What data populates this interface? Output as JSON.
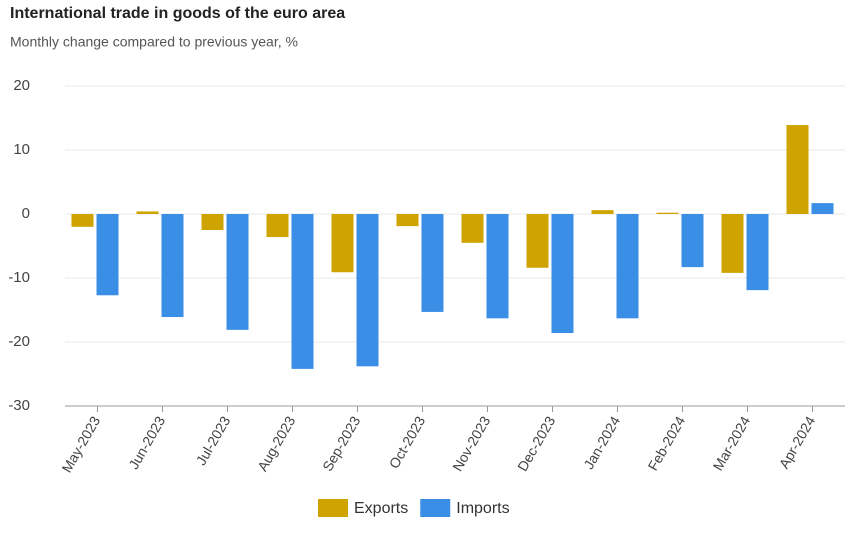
{
  "chart_data": {
    "type": "bar",
    "title": "International trade in goods of the euro area",
    "subtitle": "Monthly change compared to previous year, %",
    "categories": [
      "May-2023",
      "Jun-2023",
      "Jul-2023",
      "Aug-2023",
      "Sep-2023",
      "Oct-2023",
      "Nov-2023",
      "Dec-2023",
      "Jan-2024",
      "Feb-2024",
      "Mar-2024",
      "Apr-2024"
    ],
    "series": [
      {
        "name": "Exports",
        "color": "#cfa300",
        "values": [
          -2.0,
          0.4,
          -2.5,
          -3.6,
          -9.1,
          -1.9,
          -4.5,
          -8.4,
          0.6,
          0.2,
          -9.2,
          13.9
        ]
      },
      {
        "name": "Imports",
        "color": "#3a8ee6",
        "values": [
          -12.7,
          -16.1,
          -18.1,
          -24.2,
          -23.8,
          -15.3,
          -16.3,
          -18.6,
          -16.3,
          -8.3,
          -11.9,
          1.7
        ]
      }
    ],
    "ylim": [
      -30,
      20
    ],
    "yticks": [
      -30,
      -20,
      -10,
      0,
      10,
      20
    ],
    "grid": true,
    "legend": "bottom"
  }
}
